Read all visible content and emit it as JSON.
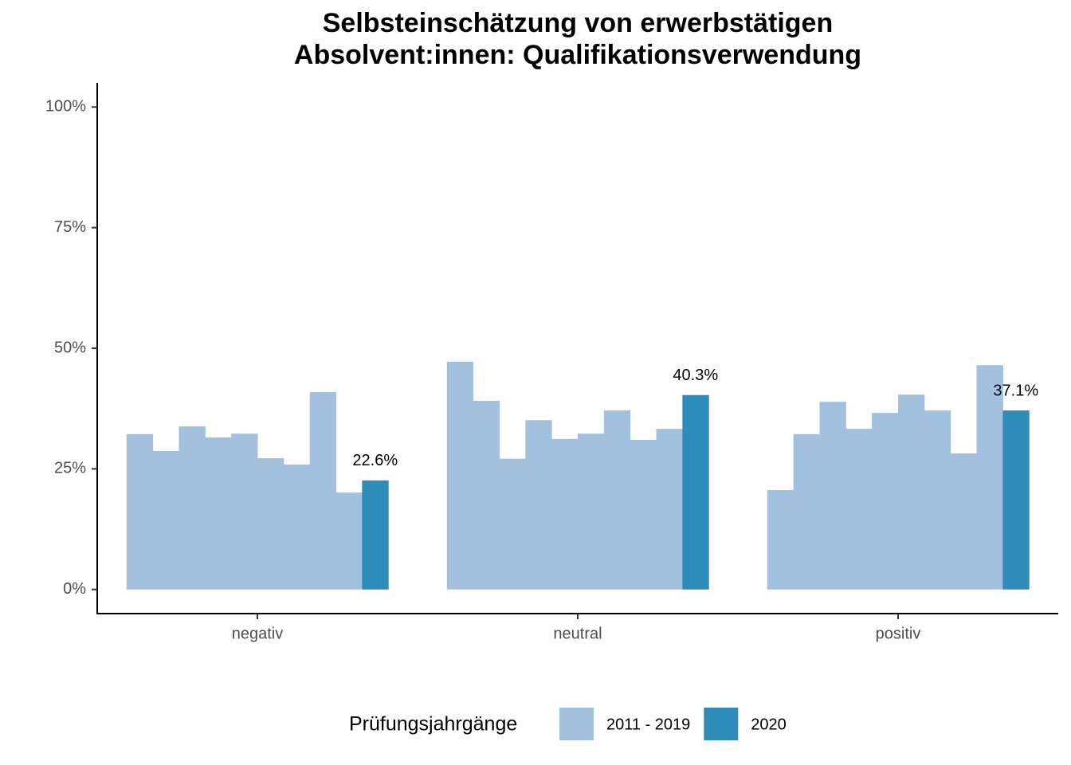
{
  "chart_data": {
    "type": "bar",
    "title": [
      "Selbsteinschätzung von erwerbstätigen",
      "Absolvent:innen: Qualifikationsverwendung"
    ],
    "categories": [
      "negativ",
      "neutral",
      "positiv"
    ],
    "series": [
      {
        "name": "2011 - 2019",
        "color": "#a1c1de",
        "values": [
          [
            32.2,
            28.7,
            33.8,
            31.5,
            32.3,
            27.2,
            25.9,
            40.9,
            20.1
          ],
          [
            47.2,
            39.1,
            27.1,
            35.1,
            31.2,
            32.3,
            37.1,
            31.0,
            33.3
          ],
          [
            20.6,
            32.2,
            38.9,
            33.3,
            36.6,
            40.4,
            37.1,
            28.2,
            46.5
          ]
        ]
      },
      {
        "name": "2020",
        "color": "#2f8bb8",
        "values": [
          22.6,
          40.3,
          37.1
        ],
        "value_labels": [
          "22.6%",
          "40.3%",
          "37.1%"
        ]
      }
    ],
    "legend_title": "Prüfungsjahrgänge",
    "ylim": [
      -5,
      105
    ],
    "yticks": [
      {
        "value": 0,
        "label": "0%"
      },
      {
        "value": 25,
        "label": "25%"
      },
      {
        "value": 50,
        "label": "50%"
      },
      {
        "value": 75,
        "label": "75%"
      },
      {
        "value": 100,
        "label": "100%"
      }
    ],
    "grid": false
  }
}
